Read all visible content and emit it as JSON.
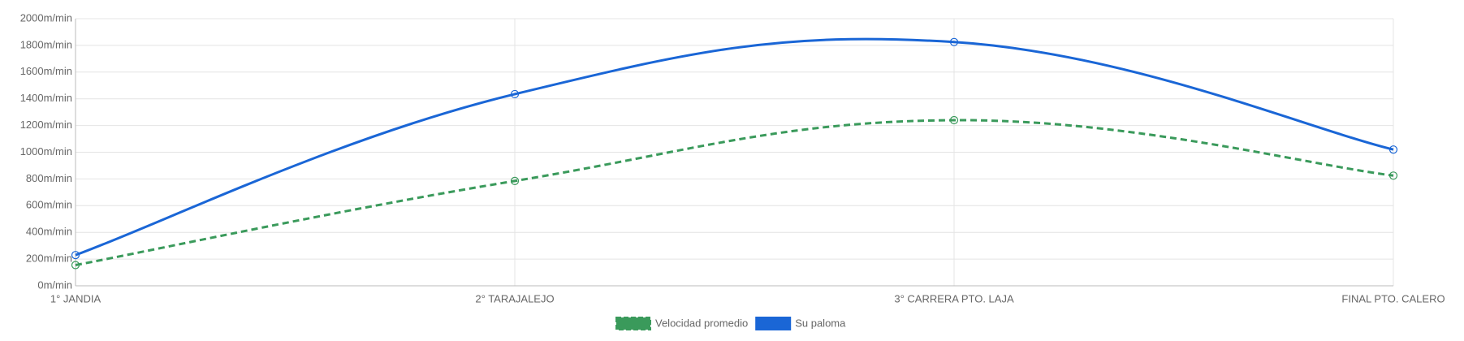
{
  "chart_data": {
    "type": "line",
    "categories": [
      "1° JANDIA",
      "2° TARAJALEJO",
      "3° CARRERA PTO. LAJA",
      "FINAL PTO. CALERO"
    ],
    "series": [
      {
        "name": "Velocidad promedio",
        "color": "#3a9a5b",
        "dashed": true,
        "values": [
          155,
          785,
          1240,
          825
        ]
      },
      {
        "name": "Su paloma",
        "color": "#1a66d6",
        "dashed": false,
        "values": [
          230,
          1435,
          1825,
          1020
        ]
      }
    ],
    "ylim": [
      0,
      2000
    ],
    "yticks": [
      {
        "value": 0,
        "label": "0m/min"
      },
      {
        "value": 200,
        "label": "200m/min"
      },
      {
        "value": 400,
        "label": "400m/min"
      },
      {
        "value": 600,
        "label": "600m/min"
      },
      {
        "value": 800,
        "label": "800m/min"
      },
      {
        "value": 1000,
        "label": "1000m/min"
      },
      {
        "value": 1200,
        "label": "1200m/min"
      },
      {
        "value": 1400,
        "label": "1400m/min"
      },
      {
        "value": 1600,
        "label": "1600m/min"
      },
      {
        "value": 1800,
        "label": "1800m/min"
      },
      {
        "value": 2000,
        "label": "2000m/min"
      }
    ],
    "grid": true,
    "legend": "bottom"
  }
}
